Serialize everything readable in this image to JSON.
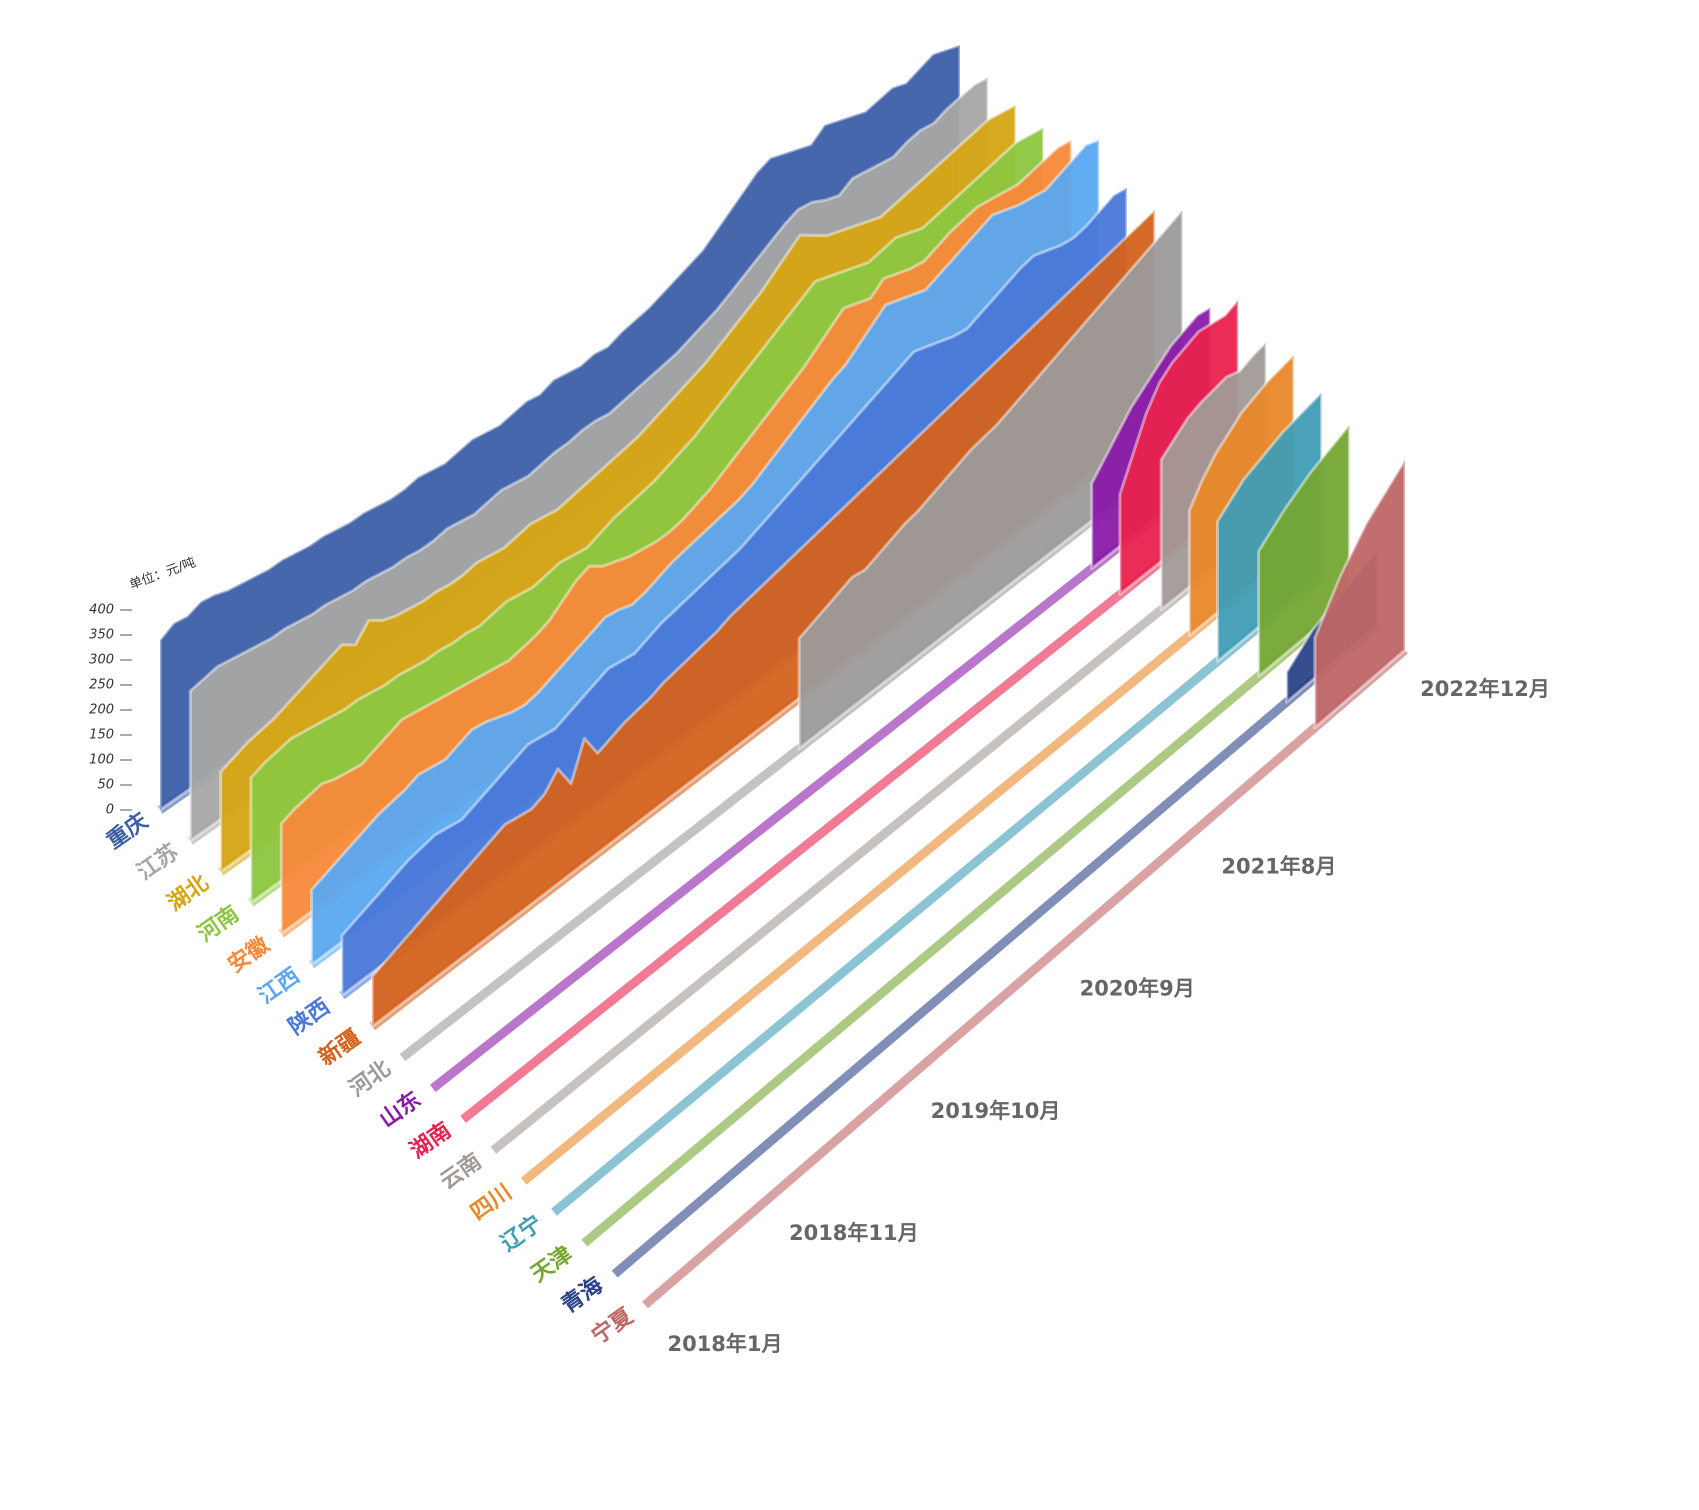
{
  "chart_data": {
    "type": "area3d",
    "y_label": "单位：元/吨",
    "ylim": [
      0,
      400
    ],
    "yticks": [
      0,
      50,
      100,
      150,
      200,
      250,
      300,
      350,
      400
    ],
    "categories": [
      "2018年1月",
      null,
      null,
      null,
      null,
      null,
      null,
      null,
      null,
      null,
      "2018年11月",
      null,
      null,
      null,
      null,
      null,
      null,
      null,
      null,
      null,
      null,
      "2019年10月",
      null,
      null,
      null,
      null,
      null,
      null,
      null,
      null,
      null,
      null,
      "2020年9月",
      null,
      null,
      null,
      null,
      null,
      null,
      null,
      null,
      null,
      null,
      "2021年8月",
      null,
      null,
      null,
      null,
      null,
      null,
      null,
      null,
      null,
      null,
      null,
      null,
      null,
      null,
      null,
      "2022年12月"
    ],
    "series": [
      {
        "name": "重庆",
        "color": "#3d5fa8",
        "values": [
          340,
          355,
          350,
          360,
          355,
          345,
          340,
          335,
          330,
          330,
          325,
          320,
          320,
          315,
          310,
          310,
          305,
          300,
          300,
          305,
          300,
          295,
          300,
          305,
          300,
          295,
          300,
          305,
          300,
          310,
          305,
          300,
          305,
          300,
          310,
          315,
          320,
          330,
          340,
          350,
          360,
          380,
          400,
          420,
          440,
          450,
          440,
          430,
          420,
          440,
          430,
          420,
          410,
          415,
          420,
          410,
          420,
          430,
          420,
          410
        ]
      },
      {
        "name": "江苏",
        "color": "#a8a6a4",
        "values": [
          300,
          305,
          310,
          305,
          300,
          295,
          290,
          290,
          285,
          280,
          280,
          275,
          270,
          270,
          265,
          260,
          260,
          255,
          255,
          260,
          255,
          250,
          255,
          260,
          255,
          250,
          255,
          260,
          260,
          265,
          265,
          260,
          265,
          270,
          275,
          280,
          285,
          295,
          305,
          315,
          330,
          345,
          360,
          375,
          390,
          400,
          395,
          380,
          370,
          385,
          380,
          375,
          370,
          380,
          385,
          380,
          390,
          395,
          400,
          395
        ]
      },
      {
        "name": "湖北",
        "color": "#d6a513",
        "values": [
          200,
          210,
          220,
          225,
          230,
          240,
          250,
          260,
          270,
          280,
          260,
          290,
          270,
          260,
          255,
          250,
          250,
          245,
          245,
          250,
          245,
          240,
          245,
          250,
          245,
          240,
          245,
          250,
          255,
          260,
          265,
          270,
          280,
          290,
          300,
          310,
          320,
          335,
          350,
          365,
          380,
          400,
          420,
          440,
          420,
          400,
          390,
          380,
          370,
          360,
          365,
          370,
          375,
          380,
          385,
          390,
          395,
          400,
          395,
          390
        ]
      },
      {
        "name": "河南",
        "color": "#8cc63f",
        "values": [
          250,
          260,
          265,
          270,
          265,
          260,
          255,
          250,
          250,
          245,
          240,
          240,
          235,
          230,
          230,
          225,
          225,
          220,
          225,
          230,
          225,
          220,
          225,
          230,
          225,
          220,
          230,
          240,
          245,
          250,
          255,
          265,
          275,
          285,
          300,
          315,
          330,
          345,
          360,
          375,
          390,
          405,
          420,
          410,
          400,
          390,
          380,
          385,
          390,
          380,
          370,
          375,
          380,
          385,
          390,
          395,
          400,
          405,
          400,
          395
        ]
      },
      {
        "name": "安徽",
        "color": "#f78a3a",
        "values": [
          220,
          230,
          235,
          240,
          230,
          225,
          220,
          230,
          240,
          250,
          245,
          240,
          235,
          230,
          225,
          220,
          215,
          210,
          215,
          220,
          230,
          250,
          270,
          280,
          260,
          250,
          240,
          235,
          230,
          230,
          235,
          245,
          255,
          270,
          285,
          300,
          315,
          330,
          345,
          360,
          380,
          400,
          420,
          410,
          400,
          420,
          410,
          400,
          395,
          405,
          415,
          420,
          425,
          420,
          415,
          410,
          415,
          420,
          425,
          420
        ]
      },
      {
        "name": "江西",
        "color": "#5aa8f0",
        "values": [
          150,
          160,
          170,
          180,
          190,
          200,
          205,
          210,
          220,
          215,
          210,
          220,
          230,
          225,
          215,
          205,
          200,
          205,
          215,
          225,
          235,
          245,
          255,
          250,
          240,
          245,
          255,
          265,
          270,
          275,
          280,
          285,
          290,
          300,
          315,
          330,
          345,
          360,
          375,
          390,
          400,
          420,
          440,
          460,
          450,
          440,
          430,
          440,
          450,
          460,
          470,
          480,
          470,
          460,
          455,
          450,
          460,
          470,
          480,
          470
        ]
      },
      {
        "name": "陕西",
        "color": "#4a78d8",
        "values": [
          120,
          130,
          140,
          150,
          160,
          170,
          175,
          180,
          175,
          170,
          180,
          190,
          200,
          210,
          220,
          215,
          210,
          220,
          230,
          240,
          250,
          245,
          240,
          250,
          260,
          265,
          270,
          275,
          280,
          285,
          290,
          300,
          310,
          320,
          330,
          340,
          350,
          360,
          370,
          380,
          390,
          400,
          410,
          420,
          410,
          400,
          390,
          385,
          395,
          405,
          415,
          425,
          430,
          420,
          410,
          405,
          410,
          420,
          430,
          425
        ]
      },
      {
        "name": "新疆",
        "color": "#d4621c",
        "values": [
          100,
          110,
          120,
          130,
          140,
          150,
          160,
          170,
          180,
          190,
          200,
          195,
          190,
          200,
          230,
          180,
          250,
          200,
          210,
          220,
          225,
          230,
          240,
          245,
          250,
          255,
          260,
          270,
          275,
          280,
          285,
          290,
          295,
          300,
          305,
          310,
          315,
          320,
          325,
          330,
          335,
          340,
          345,
          350,
          355,
          360,
          365,
          370,
          375,
          380,
          385,
          390,
          395,
          400,
          405,
          410,
          415,
          420,
          425,
          430
        ]
      },
      {
        "name": "河北",
        "color": "#9c9a9a",
        "values": [
          null,
          null,
          null,
          null,
          null,
          null,
          null,
          null,
          null,
          null,
          null,
          null,
          null,
          null,
          null,
          null,
          null,
          null,
          null,
          null,
          null,
          null,
          null,
          null,
          null,
          null,
          null,
          null,
          null,
          null,
          220,
          230,
          240,
          250,
          260,
          255,
          265,
          275,
          285,
          290,
          300,
          310,
          320,
          330,
          335,
          340,
          350,
          360,
          370,
          380,
          390,
          400,
          410,
          420,
          430,
          440,
          450,
          460,
          470,
          480
        ]
      },
      {
        "name": "山东",
        "color": "#8a1aa6",
        "values": [
          null,
          null,
          null,
          null,
          null,
          null,
          null,
          null,
          null,
          null,
          null,
          null,
          null,
          null,
          null,
          null,
          null,
          null,
          null,
          null,
          null,
          null,
          null,
          null,
          null,
          null,
          null,
          null,
          null,
          null,
          null,
          null,
          null,
          null,
          null,
          null,
          null,
          null,
          null,
          null,
          null,
          null,
          null,
          null,
          null,
          null,
          null,
          null,
          null,
          null,
          170,
          200,
          230,
          260,
          280,
          300,
          320,
          330,
          340,
          335
        ]
      },
      {
        "name": "湖南",
        "color": "#e8224e",
        "values": [
          null,
          null,
          null,
          null,
          null,
          null,
          null,
          null,
          null,
          null,
          null,
          null,
          null,
          null,
          null,
          null,
          null,
          null,
          null,
          null,
          null,
          null,
          null,
          null,
          null,
          null,
          null,
          null,
          null,
          null,
          null,
          null,
          null,
          null,
          null,
          null,
          null,
          null,
          null,
          null,
          null,
          null,
          null,
          null,
          null,
          null,
          null,
          null,
          null,
          null,
          200,
          260,
          320,
          360,
          380,
          390,
          400,
          395,
          390,
          400
        ]
      },
      {
        "name": "云南",
        "color": "#a29a96",
        "values": [
          null,
          null,
          null,
          null,
          null,
          null,
          null,
          null,
          null,
          null,
          null,
          null,
          null,
          null,
          null,
          null,
          null,
          null,
          null,
          null,
          null,
          null,
          null,
          null,
          null,
          null,
          null,
          null,
          null,
          null,
          null,
          null,
          null,
          null,
          null,
          null,
          null,
          null,
          null,
          null,
          null,
          null,
          null,
          null,
          null,
          null,
          null,
          null,
          null,
          null,
          null,
          300,
          320,
          340,
          350,
          355,
          360,
          350,
          360,
          365
        ]
      },
      {
        "name": "四川",
        "color": "#e8882a",
        "values": [
          null,
          null,
          null,
          null,
          null,
          null,
          null,
          null,
          null,
          null,
          null,
          null,
          null,
          null,
          null,
          null,
          null,
          null,
          null,
          null,
          null,
          null,
          null,
          null,
          null,
          null,
          null,
          null,
          null,
          null,
          null,
          null,
          null,
          null,
          null,
          null,
          null,
          null,
          null,
          null,
          null,
          null,
          null,
          null,
          null,
          null,
          null,
          null,
          null,
          null,
          null,
          250,
          290,
          320,
          340,
          360,
          370,
          380,
          385,
          390
        ]
      },
      {
        "name": "辽宁",
        "color": "#3f9db5",
        "values": [
          null,
          null,
          null,
          null,
          null,
          null,
          null,
          null,
          null,
          null,
          null,
          null,
          null,
          null,
          null,
          null,
          null,
          null,
          null,
          null,
          null,
          null,
          null,
          null,
          null,
          null,
          null,
          null,
          null,
          null,
          null,
          null,
          null,
          null,
          null,
          null,
          null,
          null,
          null,
          null,
          null,
          null,
          null,
          null,
          null,
          null,
          null,
          null,
          null,
          null,
          null,
          280,
          300,
          320,
          330,
          340,
          350,
          355,
          360,
          365
        ]
      },
      {
        "name": "天津",
        "color": "#74a632",
        "values": [
          null,
          null,
          null,
          null,
          null,
          null,
          null,
          null,
          null,
          null,
          null,
          null,
          null,
          null,
          null,
          null,
          null,
          null,
          null,
          null,
          null,
          null,
          null,
          null,
          null,
          null,
          null,
          null,
          null,
          null,
          null,
          null,
          null,
          null,
          null,
          null,
          null,
          null,
          null,
          null,
          null,
          null,
          null,
          null,
          null,
          null,
          null,
          null,
          null,
          null,
          null,
          null,
          250,
          270,
          290,
          305,
          320,
          330,
          340,
          350
        ]
      },
      {
        "name": "青海",
        "color": "#2b4388",
        "values": [
          null,
          null,
          null,
          null,
          null,
          null,
          null,
          null,
          null,
          null,
          null,
          null,
          null,
          null,
          null,
          null,
          null,
          null,
          null,
          null,
          null,
          null,
          null,
          null,
          null,
          null,
          null,
          null,
          null,
          null,
          null,
          null,
          null,
          null,
          null,
          null,
          null,
          null,
          null,
          null,
          null,
          null,
          null,
          null,
          null,
          null,
          null,
          null,
          null,
          null,
          null,
          null,
          60,
          80,
          100,
          110,
          120,
          130,
          140,
          150
        ]
      },
      {
        "name": "宁夏",
        "color": "#c06666",
        "values": [
          null,
          null,
          null,
          null,
          null,
          null,
          null,
          null,
          null,
          null,
          null,
          null,
          null,
          null,
          null,
          null,
          null,
          null,
          null,
          null,
          null,
          null,
          null,
          null,
          null,
          null,
          null,
          null,
          null,
          null,
          null,
          null,
          null,
          null,
          null,
          null,
          null,
          null,
          null,
          null,
          null,
          null,
          null,
          null,
          null,
          null,
          null,
          null,
          null,
          null,
          null,
          null,
          180,
          220,
          260,
          290,
          320,
          340,
          360,
          380
        ]
      }
    ]
  }
}
